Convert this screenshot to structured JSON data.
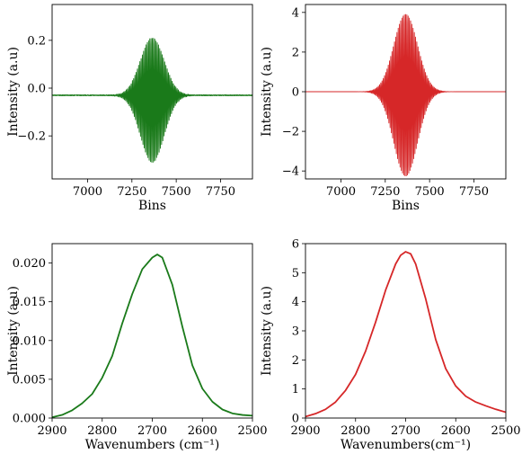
{
  "chart_data": [
    {
      "type": "line",
      "subtype": "interferogram",
      "color": "#1a7a1a",
      "xlabel": "Bins",
      "ylabel": "Intensity (a.u)",
      "xlim": [
        6800,
        7930
      ],
      "ylim": [
        -0.38,
        0.35
      ],
      "xticks": [
        7000,
        7250,
        7500,
        7750
      ],
      "xtick_labels": [
        "7000",
        "7250",
        "7500",
        "7750"
      ],
      "yticks": [
        -0.2,
        0.0,
        0.2
      ],
      "ytick_labels": [
        "−0.2",
        "0.0",
        "0.2"
      ],
      "signal": {
        "center": 7365,
        "peak_amplitude": 0.21,
        "trough": -0.31,
        "envelope_width_bins": 95,
        "oscillation_period_bins": 7,
        "baseline": -0.03,
        "noise": 0.004
      }
    },
    {
      "type": "line",
      "subtype": "interferogram",
      "color": "#d62728",
      "xlabel": "Bins",
      "ylabel": "Intensity (a.u)",
      "xlim": [
        6800,
        7930
      ],
      "ylim": [
        -4.4,
        4.4
      ],
      "xticks": [
        7000,
        7250,
        7500,
        7750
      ],
      "xtick_labels": [
        "7000",
        "7250",
        "7500",
        "7750"
      ],
      "yticks": [
        -4,
        -2,
        0,
        2,
        4
      ],
      "ytick_labels": [
        "−4",
        "−2",
        "0",
        "2",
        "4"
      ],
      "signal": {
        "center": 7365,
        "peak_amplitude": 3.9,
        "trough": -4.25,
        "envelope_width_bins": 95,
        "oscillation_period_bins": 7,
        "baseline": 0.0,
        "noise": 0.0
      }
    },
    {
      "type": "line",
      "subtype": "spectrum",
      "color": "#1a7a1a",
      "xlabel": "Wavenumbers (cm⁻¹)",
      "ylabel": "Intensity (a.u)",
      "xlim": [
        2900,
        2500
      ],
      "ylim": [
        0,
        0.0225
      ],
      "xticks": [
        2900,
        2800,
        2700,
        2600,
        2500
      ],
      "xtick_labels": [
        "2900",
        "2800",
        "2700",
        "2600",
        "2500"
      ],
      "yticks": [
        0,
        0.005,
        0.01,
        0.015,
        0.02
      ],
      "ytick_labels": [
        "0.000",
        "0.005",
        "0.010",
        "0.015",
        "0.020"
      ],
      "x": [
        2900,
        2880,
        2860,
        2840,
        2820,
        2800,
        2780,
        2760,
        2740,
        2720,
        2700,
        2690,
        2680,
        2660,
        2640,
        2620,
        2600,
        2580,
        2560,
        2540,
        2520,
        2500
      ],
      "y": [
        0.0001,
        0.0004,
        0.001,
        0.0019,
        0.0031,
        0.0052,
        0.008,
        0.0122,
        0.016,
        0.0192,
        0.0207,
        0.0211,
        0.0207,
        0.0172,
        0.0118,
        0.0068,
        0.0038,
        0.0021,
        0.0011,
        0.0006,
        0.0004,
        0.0003
      ]
    },
    {
      "type": "line",
      "subtype": "spectrum",
      "color": "#d62728",
      "xlabel": "Wavenumbers(cm⁻¹)",
      "ylabel": "Intensity (a.u)",
      "xlim": [
        2900,
        2500
      ],
      "ylim": [
        0,
        6
      ],
      "xticks": [
        2900,
        2800,
        2700,
        2600,
        2500
      ],
      "xtick_labels": [
        "2900",
        "2800",
        "2700",
        "2600",
        "2500"
      ],
      "yticks": [
        0,
        1,
        2,
        3,
        4,
        5,
        6
      ],
      "ytick_labels": [
        "0",
        "1",
        "2",
        "3",
        "4",
        "5",
        "6"
      ],
      "x": [
        2900,
        2880,
        2860,
        2840,
        2820,
        2800,
        2780,
        2760,
        2740,
        2720,
        2710,
        2700,
        2690,
        2680,
        2660,
        2640,
        2620,
        2600,
        2580,
        2560,
        2540,
        2520,
        2500
      ],
      "y": [
        0.05,
        0.15,
        0.3,
        0.55,
        0.95,
        1.5,
        2.3,
        3.3,
        4.4,
        5.3,
        5.6,
        5.72,
        5.65,
        5.3,
        4.1,
        2.7,
        1.7,
        1.1,
        0.75,
        0.55,
        0.42,
        0.3,
        0.2
      ]
    }
  ]
}
